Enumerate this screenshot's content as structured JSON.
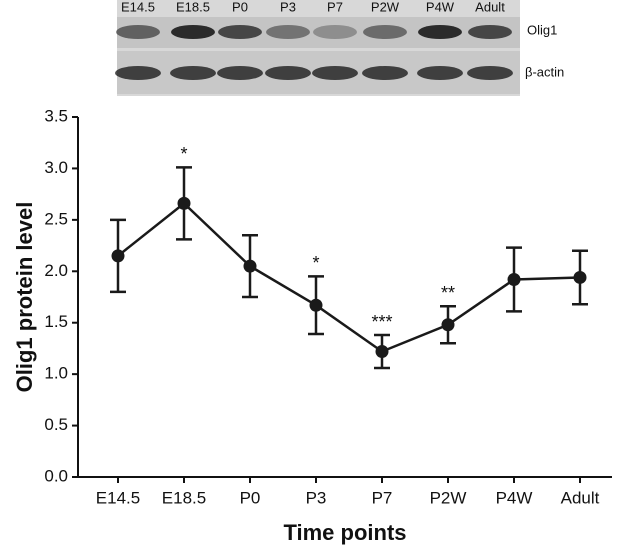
{
  "chart_data": {
    "type": "line",
    "x_label": "Time points",
    "y_label": "Olig1 protein level",
    "categories": [
      "E14.5",
      "E18.5",
      "P0",
      "P3",
      "P7",
      "P2W",
      "P4W",
      "Adult"
    ],
    "series": [
      {
        "name": "Olig1",
        "color": "#1a1a1a",
        "values": [
          2.15,
          2.66,
          2.05,
          1.67,
          1.22,
          1.48,
          1.92,
          1.94
        ],
        "errors": [
          0.35,
          0.35,
          0.3,
          0.28,
          0.16,
          0.18,
          0.31,
          0.26
        ]
      }
    ],
    "significance": [
      null,
      "*",
      null,
      "*",
      "***",
      "**",
      null,
      null
    ],
    "ylim": [
      0,
      3.5
    ],
    "yticks": [
      {
        "value": 0,
        "label": "0.0"
      },
      0.5,
      {
        "value": 1,
        "label": "1.0"
      },
      1.5,
      {
        "value": 2,
        "label": "2.0"
      },
      2.5,
      {
        "value": 3,
        "label": "3.0"
      },
      3.5
    ],
    "blot": {
      "lanes": [
        "E14.5",
        "E18.5",
        "P0",
        "P3",
        "P7",
        "P2W",
        "P4W",
        "Adult"
      ],
      "bands": [
        "Olig1",
        "β-actin"
      ]
    }
  }
}
